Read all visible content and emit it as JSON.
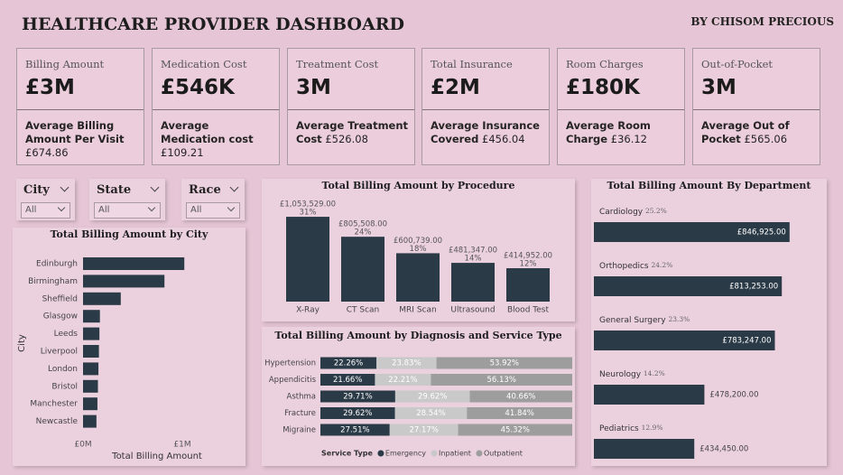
{
  "header": {
    "title": "HEALTHCARE PROVIDER DASHBOARD",
    "author": "BY CHISOM PRECIOUS"
  },
  "kpis": [
    {
      "label": "Billing Amount",
      "value": "£3M",
      "sub_label": "Average Billing Amount Per Visit",
      "sub_value": "£674.86"
    },
    {
      "label": "Medication Cost",
      "value": "£546K",
      "sub_label": "Average Medication cost",
      "sub_value": "£109.21"
    },
    {
      "label": "Treatment Cost",
      "value": "3M",
      "sub_label": "Average Treatment Cost",
      "sub_value": "£526.08"
    },
    {
      "label": "Total Insurance",
      "value": "£2M",
      "sub_label": "Average Insurance Covered",
      "sub_value": "£456.04"
    },
    {
      "label": "Room Charges",
      "value": "£180K",
      "sub_label": "Average Room Charge",
      "sub_value": "£36.12"
    },
    {
      "label": "Out-of-Pocket",
      "value": "3M",
      "sub_label": "Average Out of Pocket",
      "sub_value": "£565.06"
    }
  ],
  "filters": [
    {
      "label": "City",
      "value": "All"
    },
    {
      "label": "State",
      "value": "All"
    },
    {
      "label": "Race",
      "value": "All"
    }
  ],
  "chart_data": [
    {
      "type": "hbar",
      "title": "Total Billing Amount by City",
      "x_label": "Total Billing Amount",
      "y_label": "City",
      "categories": [
        "Edinburgh",
        "Birmingham",
        "Sheffield",
        "Glasgow",
        "Leeds",
        "Liverpool",
        "London",
        "Bristol",
        "Manchester",
        "Newcastle"
      ],
      "values": [
        1020000,
        820000,
        380000,
        170000,
        165000,
        160000,
        155000,
        150000,
        145000,
        135000
      ],
      "color": "#2b3a47",
      "xlim": [
        0,
        1500000
      ],
      "xticks": [
        {
          "value": 0,
          "label": "£0M"
        },
        {
          "value": 1000000,
          "label": "£1M"
        }
      ]
    },
    {
      "type": "column",
      "title": "Total Billing Amount by Procedure",
      "categories": [
        "X-Ray",
        "CT Scan",
        "MRI Scan",
        "Ultrasound",
        "Blood Test"
      ],
      "values": [
        1053529,
        805508,
        600739,
        481347,
        414952
      ],
      "value_labels": [
        "£1,053,529.00",
        "£805,508.00",
        "£600,739.00",
        "£481,347.00",
        "£414,952.00"
      ],
      "share_labels": [
        "31%",
        "24%",
        "18%",
        "14%",
        "12%"
      ],
      "color": "#2b3a47",
      "ylim": [
        0,
        1200000
      ]
    },
    {
      "type": "stacked_hbar",
      "title": "Total Billing Amount by Diagnosis and Service Type",
      "legend_title": "Service Type",
      "categories": [
        "Hypertension",
        "Appendicitis",
        "Asthma",
        "Fracture",
        "Migraine"
      ],
      "series": [
        {
          "name": "Emergency",
          "color": "#2b3a47",
          "label_color": "#ffffff",
          "values": [
            22.26,
            21.66,
            29.71,
            29.62,
            27.51
          ],
          "value_labels": [
            "22.26%",
            "21.66%",
            "29.71%",
            "29.62%",
            "27.51%"
          ]
        },
        {
          "name": "Inpatient",
          "color": "#c9c9c9",
          "label_color": "#ffffff",
          "values": [
            23.83,
            22.21,
            29.62,
            28.54,
            27.17
          ],
          "value_labels": [
            "23.83%",
            "22.21%",
            "29.62%",
            "28.54%",
            "27.17%"
          ]
        },
        {
          "name": "Outpatient",
          "color": "#9d9d9d",
          "label_color": "#ffffff",
          "values": [
            53.92,
            56.13,
            40.66,
            41.84,
            45.32
          ],
          "value_labels": [
            "53.92%",
            "56.13%",
            "40.66%",
            "41.84%",
            "45.32%"
          ]
        }
      ],
      "xlim": [
        0,
        100
      ]
    },
    {
      "type": "labeled_hbar",
      "title": "Total Billing Amount By Department",
      "categories": [
        "Cardiology",
        "Orthopedics",
        "General Surgery",
        "Neurology",
        "Pediatrics"
      ],
      "share_labels": [
        "25.2%",
        "24.2%",
        "23.3%",
        "14.2%",
        "12.9%"
      ],
      "values": [
        846925,
        813253,
        783247,
        478200,
        434450
      ],
      "value_labels": [
        "£846,925.00",
        "£813,253.00",
        "£783,247.00",
        "£478,200.00",
        "£434,450.00"
      ],
      "color": "#2b3a47",
      "xlim": [
        0,
        1000000
      ]
    }
  ]
}
